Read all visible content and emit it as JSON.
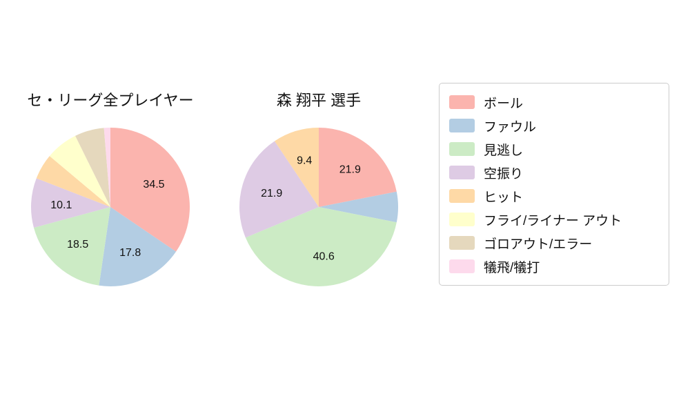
{
  "chart_data": [
    {
      "type": "pie",
      "title": "セ・リーグ全プレイヤー",
      "categories": [
        "ボール",
        "ファウル",
        "見逃し",
        "空振り",
        "ヒット",
        "フライ/ライナー アウト",
        "ゴロアウト/エラー",
        "犠飛/犠打"
      ],
      "values": [
        34.5,
        17.8,
        18.5,
        10.1,
        5.2,
        6.6,
        6.0,
        1.3
      ],
      "value_labels": [
        "34.5",
        "17.8",
        "18.5",
        "10.1",
        "",
        "",
        "",
        ""
      ],
      "start_angle": 90,
      "direction": "clockwise",
      "legend_position": "right",
      "units": "percent"
    },
    {
      "type": "pie",
      "title": "森 翔平 選手",
      "categories": [
        "ボール",
        "ファウル",
        "見逃し",
        "空振り",
        "ヒット",
        "フライ/ライナー アウト",
        "ゴロアウト/エラー",
        "犠飛/犠打"
      ],
      "values": [
        21.9,
        6.2,
        40.6,
        21.9,
        9.4,
        0,
        0,
        0
      ],
      "value_labels": [
        "21.9",
        "",
        "40.6",
        "21.9",
        "9.4",
        "",
        "",
        ""
      ],
      "start_angle": 90,
      "direction": "clockwise",
      "legend_position": "right",
      "units": "percent"
    }
  ],
  "legend": {
    "items": [
      {
        "label": "ボール",
        "color": "#fbb4ae"
      },
      {
        "label": "ファウル",
        "color": "#b3cde3"
      },
      {
        "label": "見逃し",
        "color": "#ccebc5"
      },
      {
        "label": "空振り",
        "color": "#decbe4"
      },
      {
        "label": "ヒット",
        "color": "#fed9a6"
      },
      {
        "label": "フライ/ライナー アウト",
        "color": "#ffffcc"
      },
      {
        "label": "ゴロアウト/エラー",
        "color": "#e5d8bd"
      },
      {
        "label": "犠飛/犠打",
        "color": "#fddaec"
      }
    ]
  },
  "style": {
    "background": "#ffffff",
    "text_color": "#111111",
    "legend_border_color": "#cccccc"
  }
}
